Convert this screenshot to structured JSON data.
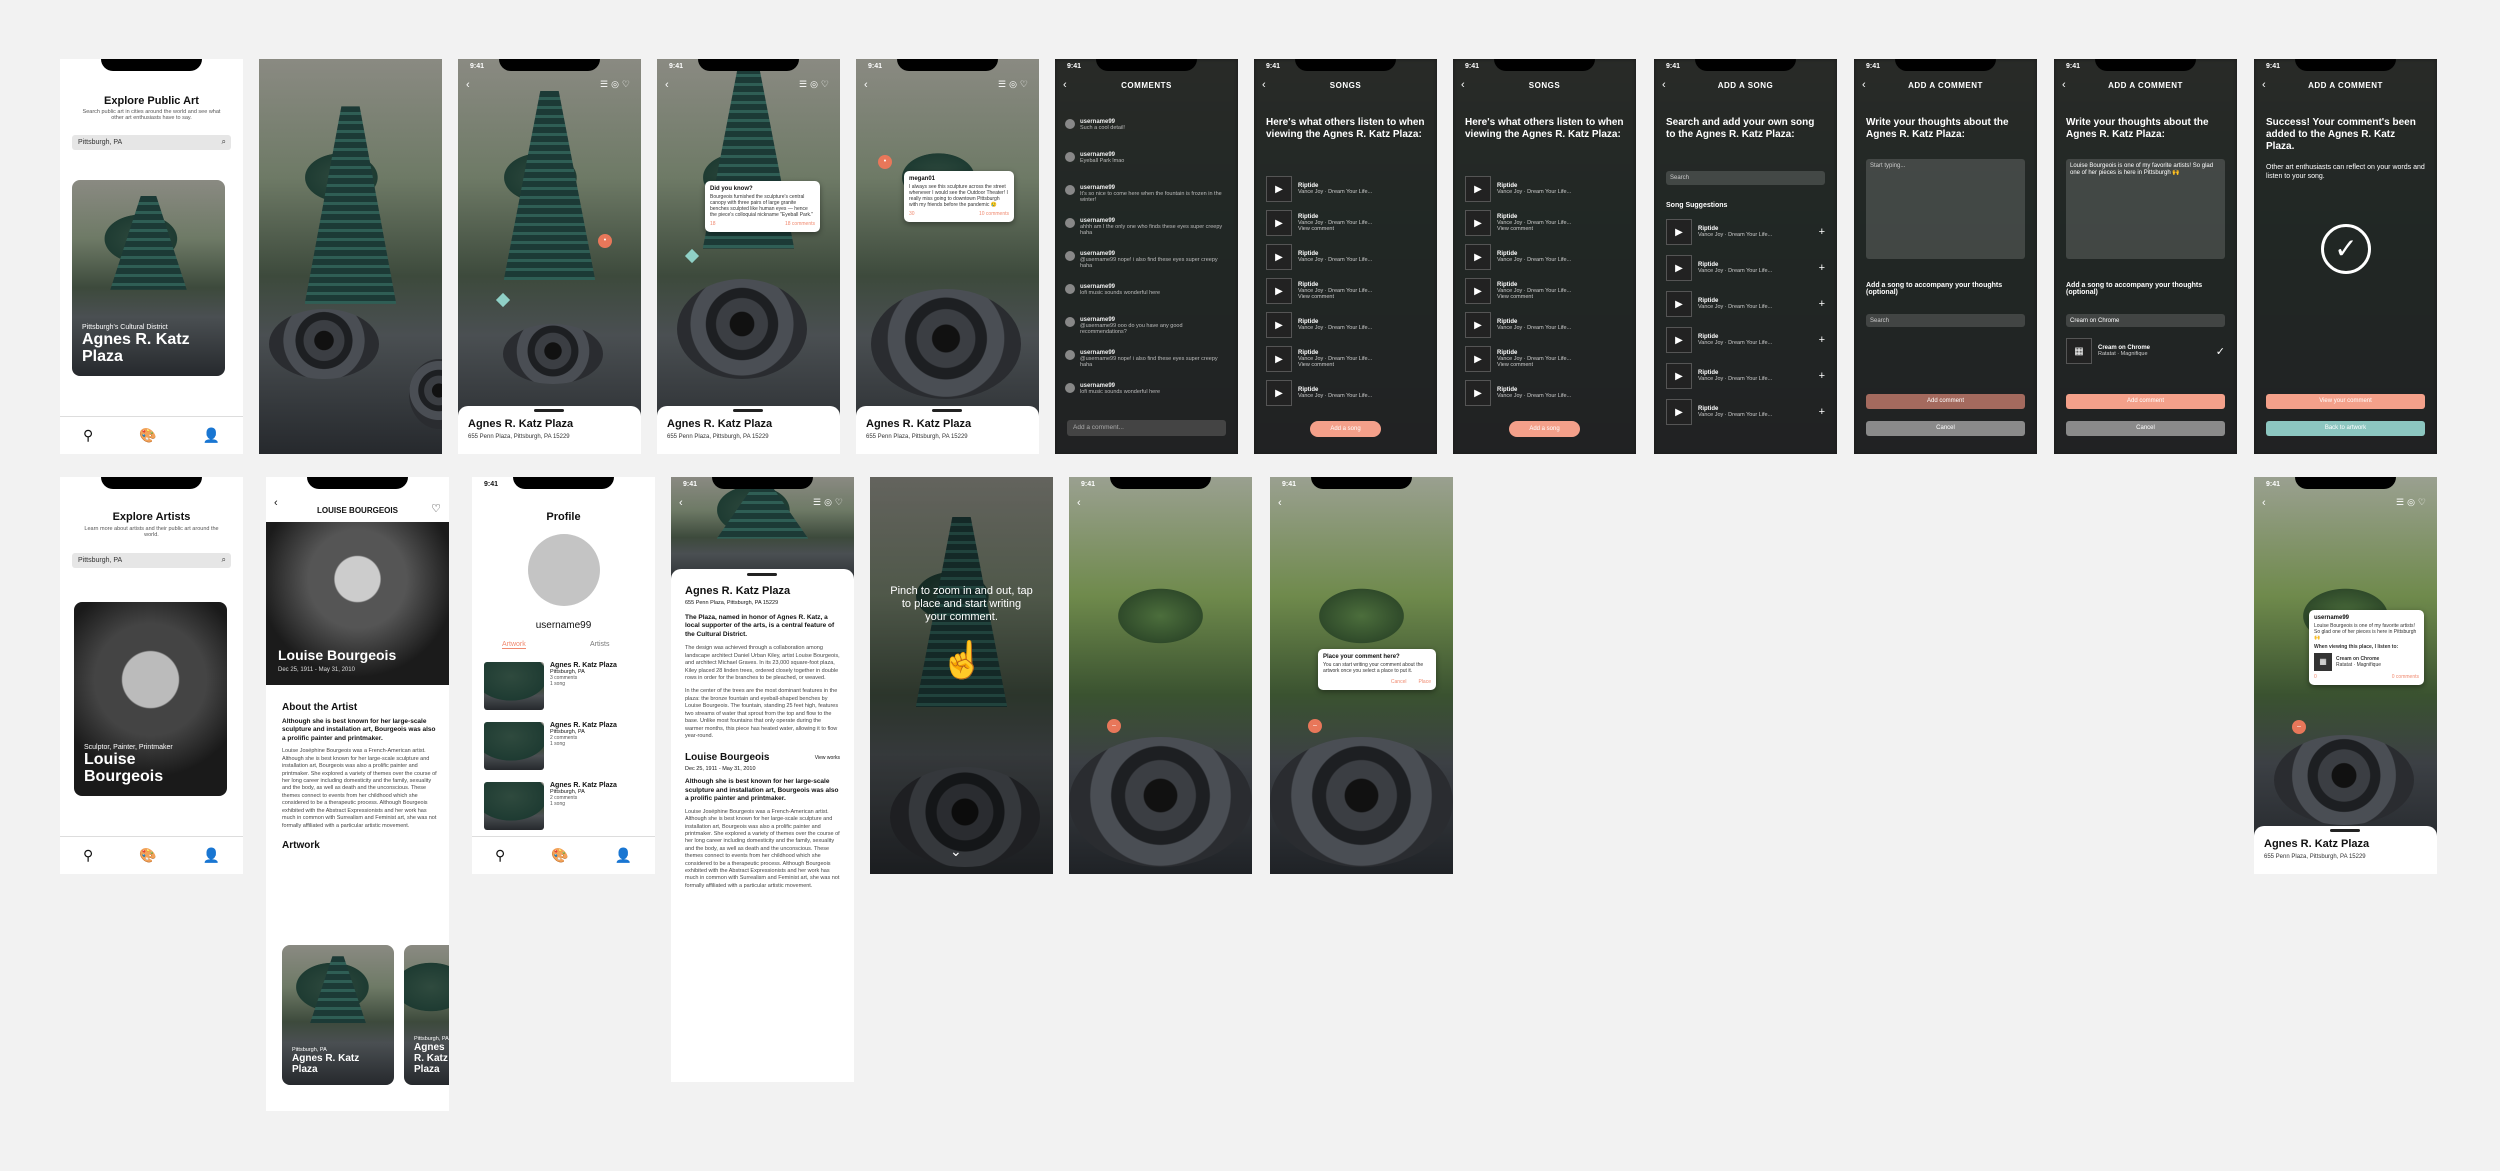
{
  "status_time": "9:41",
  "explore_art": {
    "title": "Explore Public Art",
    "subtitle": "Search public art in cities around the world and see what other art enthusiasts have to say.",
    "search": "Pittsburgh, PA",
    "district": "Pittsburgh's Cultural District",
    "card_title": "Agnes R. Katz Plaza"
  },
  "place": {
    "name": "Agnes R. Katz Plaza",
    "address": "655 Penn Plaza, Pittsburgh, PA 15229"
  },
  "did_you_know": {
    "title": "Did you know?",
    "text": "Bourgeois furnished the sculpture's central canopy with three pairs of large granite benches sculpted like human eyes — hence the piece's colloquial nickname \"Eyeball Park.\"",
    "likes": "18",
    "comments": "18 comments"
  },
  "megan_popup": {
    "user": "megan01",
    "text": "I always see this sculpture across the street whenever I would see the Outdoor Theater! I really miss going to downtown Pittsburgh with my friends before the pandemic 😢",
    "likes": "30",
    "comments": "10 comments"
  },
  "comments": {
    "header": "COMMENTS",
    "items": [
      {
        "u": "username99",
        "m": "Such a cool detail!"
      },
      {
        "u": "username99",
        "m": "Eyeball Park lmao"
      },
      {
        "u": "username99",
        "m": "It's so nice to come here when the fountain is frozen in the winter!"
      },
      {
        "u": "username99",
        "m": "ahhh am I the only one who finds these eyes super creepy haha"
      },
      {
        "u": "username99",
        "m": "@username99 nope! i also find these eyes super creepy haha"
      },
      {
        "u": "username99",
        "m": "lofi music sounds wonderful here"
      },
      {
        "u": "username99",
        "m": "@username99 ooo do you have any good recommendations?"
      },
      {
        "u": "username99",
        "m": "@username99 nope! i also find these eyes super creepy haha"
      },
      {
        "u": "username99",
        "m": "lofi music sounds wonderful here"
      }
    ],
    "input": "Add a comment..."
  },
  "songs": {
    "header": "SONGS",
    "prompt": "Here's what others listen to when viewing the Agnes R. Katz Plaza:",
    "song_title": "Riptide",
    "song_artist": "Vance Joy · Dream Your Life...",
    "view_comment": "View comment",
    "add_btn": "Add a song"
  },
  "add_song": {
    "header": "ADD A SONG",
    "prompt": "Search and add your own song to the Agnes R. Katz Plaza:",
    "search": "Search",
    "suggest": "Song Suggestions"
  },
  "add_comment": {
    "header": "ADD A COMMENT",
    "prompt": "Write your thoughts about the Agnes R. Katz Plaza:",
    "placeholder": "Start typing...",
    "filled": "Louise Bourgeois is one of my favorite artists! So glad one of her pieces is here in Pittsburgh 🙌",
    "song_q": "Add a song to accompany your thoughts (optional)",
    "song_search": "Search",
    "song_filled": "Cream on Chrome",
    "picked_title": "Cream on Chrome",
    "picked_artist": "Ratatat · Magnifique",
    "add": "Add comment",
    "cancel": "Cancel"
  },
  "success": {
    "title": "Success! Your comment's been added to the Agnes R. Katz Plaza.",
    "text": "Other art enthusiasts can reflect on your words and listen to your song.",
    "view": "View your comment",
    "back": "Back to artwork"
  },
  "explore_artists": {
    "title": "Explore Artists",
    "subtitle": "Learn more about artists and their public art around the world.",
    "search": "Pittsburgh, PA",
    "roles": "Sculptor, Painter, Printmaker",
    "name": "Louise Bourgeois"
  },
  "artist": {
    "header": "LOUISE BOURGEOIS",
    "name": "Louise Bourgeois",
    "dates": "Dec 25, 1911 - May 31, 2010",
    "about": "About the Artist",
    "lead": "Although she is best known for her large-scale sculpture and installation art, Bourgeois was also a prolific painter and printmaker.",
    "body": "Louise Joséphine Bourgeois was a French-American artist. Although she is best known for her large-scale sculpture and installation art, Bourgeois was also a prolific painter and printmaker. She explored a variety of themes over the course of her long career including domesticity and the family, sexuality and the body, as well as death and the unconscious. These themes connect to events from her childhood which she considered to be a therapeutic process. Although Bourgeois exhibited with the Abstract Expressionists and her work has much in common with Surrealism and Feminist art, she was not formally affiliated with a particular artistic movement.",
    "artwork": "Artwork",
    "aw_loc": "Pittsburgh, PA",
    "aw_title": "Agnes R. Katz Plaza",
    "aw_title2": "Agnes R. Katz Plaza"
  },
  "profile": {
    "title": "Profile",
    "user": "username99",
    "tab1": "Artwork",
    "tab2": "Artists",
    "item_title": "Agnes R. Katz Plaza",
    "item_loc": "Pittsburgh, PA",
    "c3": "3 comments",
    "c2": "2 comments",
    "c1": "1 song"
  },
  "detail": {
    "intro": "The Plaza, named in honor of Agnes R. Katz, a local supporter of the arts, is a central feature of the Cultural District.",
    "body1": "The design was achieved through a collaboration among landscape architect Daniel Urban Kiley, artist Louise Bourgeois, and architect Michael Graves. In its 23,000 square-foot plaza, Kiley placed 28 linden trees, ordered closely together in double rows in order for the branches to be pleached, or weaved.",
    "body2": "In the center of the trees are the most dominant features in the plaza: the bronze fountain and eyeball-shaped benches by Louise Bourgeois. The fountain, standing 25 feet high, features two streams of water that sprout from the top and flow to the base. Unlike most fountains that only operate during the warmer months, this piece has heated water, allowing it to flow year-round.",
    "artist_name": "Louise Bourgeois",
    "view_works": "View works",
    "dates": "Dec 25, 1911 - May 31, 2010",
    "lead": "Although she is best known for her large-scale sculpture and installation art, Bourgeois was also a prolific painter and printmaker.",
    "body": "Louise Joséphine Bourgeois was a French-American artist. Although she is best known for her large-scale sculpture and installation art, Bourgeois was also a prolific painter and printmaker. She explored a variety of themes over the course of her long career including domesticity and the family, sexuality and the body, as well as death and the unconscious. These themes connect to events from her childhood which she considered to be a therapeutic process. Although Bourgeois exhibited with the Abstract Expressionists and her work has much in common with Surrealism and Feminist art, she was not formally affiliated with a particular artistic movement."
  },
  "ar": {
    "hint": "Pinch to zoom in and out, tap to place and start writing your comment.",
    "place_title": "Place your comment here?",
    "place_text": "You can start writing your comment about the artwork once you select a place to put it.",
    "cancel": "Cancel",
    "place": "Place"
  },
  "final_popup": {
    "user": "username99",
    "text": "Louise Bourgeois is one of my favorite artists! So glad one of her pieces is here in Pittsburgh 🙌",
    "listen": "When viewing this place, I listen to:",
    "song": "Cream on Chrome",
    "artist": "Ratatat · Magnifique",
    "likes": "0",
    "comments": "0 comments"
  },
  "colors": {
    "accent": "#f4a08a",
    "teal": "#8cc6c0",
    "dark": "#1a1a1a"
  }
}
